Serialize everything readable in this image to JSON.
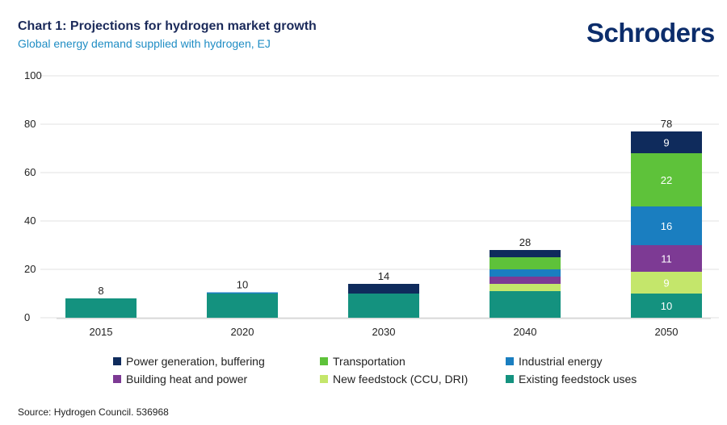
{
  "header": {
    "title": "Chart 1: Projections for hydrogen market growth",
    "subtitle": "Global energy demand supplied with hydrogen, EJ",
    "logo": "Schroders"
  },
  "source": "Source: Hydrogen Council. 536968",
  "chart_data": {
    "type": "bar",
    "stacked": true,
    "title": "Chart 1: Projections for hydrogen market growth",
    "subtitle": "Global energy demand supplied with hydrogen, EJ",
    "xlabel": "",
    "ylabel": "EJ",
    "ylim": [
      0,
      100
    ],
    "yticks": [
      "0",
      "20",
      "40",
      "60",
      "80",
      "100"
    ],
    "grid": true,
    "legend_position": "bottom",
    "categories": [
      "2015",
      "2020",
      "2030",
      "2040",
      "2050"
    ],
    "totals": [
      "8",
      "10",
      "14",
      "28",
      "78"
    ],
    "series": [
      {
        "name": "Existing feedstock uses",
        "color": "#14927f",
        "values": [
          8,
          10,
          10,
          11,
          10
        ],
        "labels": [
          "",
          "",
          "",
          "",
          "10"
        ]
      },
      {
        "name": "New feedstock (CCU, DRI)",
        "color": "#c4e66b",
        "values": [
          0,
          0,
          0,
          3,
          9
        ],
        "labels": [
          "",
          "",
          "",
          "",
          "9"
        ]
      },
      {
        "name": "Building heat and power",
        "color": "#7d3a94",
        "values": [
          0,
          0,
          0,
          3,
          11
        ],
        "labels": [
          "",
          "",
          "",
          "",
          "11"
        ]
      },
      {
        "name": "Industrial energy",
        "color": "#1a7ec0",
        "values": [
          0,
          0.5,
          0,
          3,
          16
        ],
        "labels": [
          "",
          "",
          "",
          "",
          "16"
        ]
      },
      {
        "name": "Transportation",
        "color": "#5ec23a",
        "values": [
          0,
          0,
          0,
          5,
          22
        ],
        "labels": [
          "",
          "",
          "",
          "",
          "22"
        ]
      },
      {
        "name": "Power generation, buffering",
        "color": "#0f2b5c",
        "values": [
          0,
          0,
          4,
          3,
          9
        ],
        "labels": [
          "",
          "",
          "",
          "",
          "9"
        ]
      }
    ]
  },
  "legend": [
    {
      "label": "Power generation, buffering",
      "color": "#0f2b5c"
    },
    {
      "label": "Transportation",
      "color": "#5ec23a"
    },
    {
      "label": "Industrial energy",
      "color": "#1a7ec0"
    },
    {
      "label": "Building heat and power",
      "color": "#7d3a94"
    },
    {
      "label": "New feedstock (CCU, DRI)",
      "color": "#c4e66b"
    },
    {
      "label": "Existing feedstock uses",
      "color": "#14927f"
    }
  ]
}
